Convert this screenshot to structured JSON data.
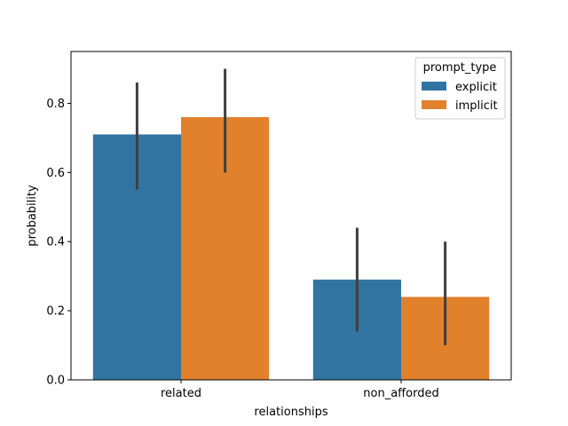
{
  "chart_data": {
    "type": "bar",
    "title": "",
    "xlabel": "relationships",
    "ylabel": "probability",
    "categories": [
      "related",
      "non_afforded"
    ],
    "ylim": [
      0,
      0.95
    ],
    "yticks": [
      "0.0",
      "0.2",
      "0.4",
      "0.6",
      "0.8"
    ],
    "grid": false,
    "legend": {
      "title": "prompt_type",
      "placement": "top-right"
    },
    "series": [
      {
        "name": "explicit",
        "color": "#3274a1",
        "values": [
          0.71,
          0.29
        ],
        "ci_low": [
          0.55,
          0.14
        ],
        "ci_high": [
          0.86,
          0.44
        ]
      },
      {
        "name": "implicit",
        "color": "#e1812c",
        "values": [
          0.76,
          0.24
        ],
        "ci_low": [
          0.6,
          0.1
        ],
        "ci_high": [
          0.9,
          0.4
        ]
      }
    ],
    "errorbar_color": "#3f3f3f"
  }
}
